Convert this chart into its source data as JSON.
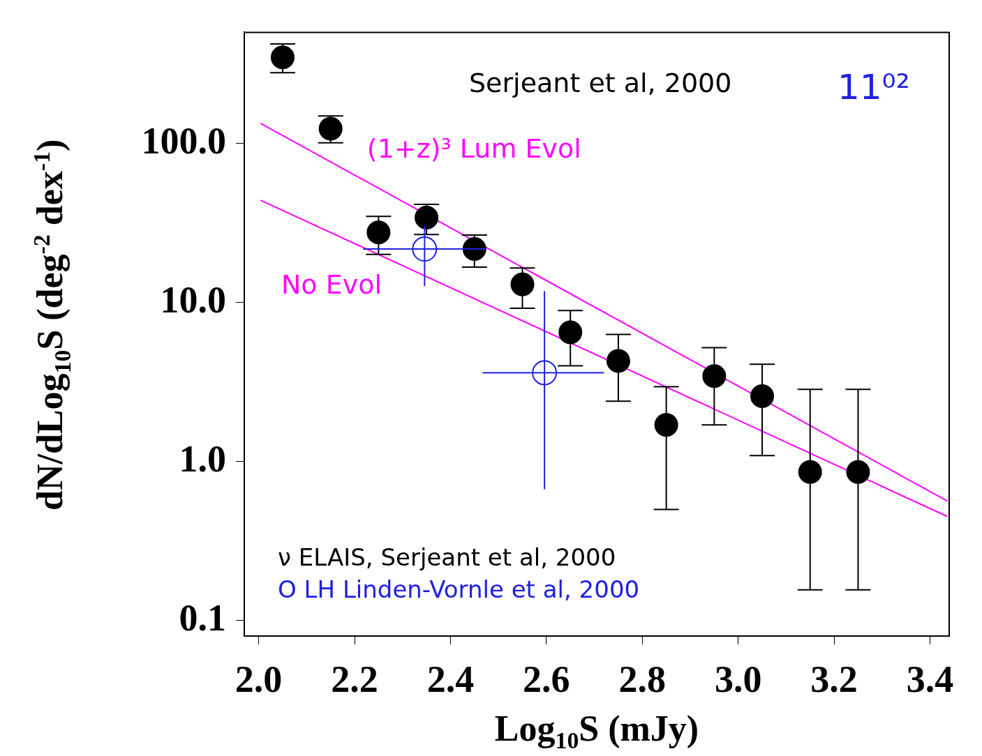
{
  "chart_data": {
    "type": "scatter",
    "xlabel": "Log$_{10}$S (mJy)",
    "ylabel": "dN/dLog$_{10}$S (deg$^{-2}$ dex$^{-1}$)",
    "annotations": [
      "Serjeant et al, 2000",
      "11⁰²"
    ],
    "xlim": [
      1.97,
      3.44
    ],
    "xticks": [
      {
        "value": 2,
        "label": "2.0"
      },
      {
        "value": 2.2,
        "label": "2.2"
      },
      {
        "value": 2.4,
        "label": "2.4"
      },
      {
        "value": 2.6,
        "label": "2.6"
      },
      {
        "value": 2.8,
        "label": "2.8"
      },
      {
        "value": 3,
        "label": "3.0"
      },
      {
        "value": 3.2,
        "label": "3.2"
      },
      {
        "value": 3.4,
        "label": "3.4"
      }
    ],
    "ylim": [
      0.08,
      500
    ],
    "yticks": [
      {
        "value": 0.1,
        "label": "0.1"
      },
      {
        "value": 1,
        "label": "1.0"
      },
      {
        "value": 10,
        "label": "10.0"
      },
      {
        "value": 100,
        "label": "100.0"
      }
    ],
    "log": "y",
    "grid": false,
    "legend": "bottom left",
    "series": [
      {
        "marker": "circle",
        "name": "ν ELAIS, Serjeant et al, 2000",
        "color": "#000000",
        "x": [
          2.05,
          2.15,
          2.25,
          2.35,
          2.45,
          2.55,
          2.65,
          2.75,
          2.85,
          2.95,
          3.05,
          3.15,
          3.25
        ],
        "values": [
          348,
          124,
          27.6,
          34.2,
          21.7,
          13.0,
          6.5,
          4.3,
          1.7,
          3.45,
          2.58,
          0.86,
          0.86
        ],
        "errors": [
          [
            279,
            423
          ],
          [
            101,
            149
          ],
          [
            20.1,
            34.8
          ],
          [
            26.8,
            41.5
          ],
          [
            16.7,
            26.6
          ],
          [
            9.2,
            16.5
          ],
          [
            4.0,
            8.9
          ],
          [
            2.4,
            6.3
          ],
          [
            0.5,
            2.96
          ],
          [
            1.7,
            5.2
          ],
          [
            1.09,
            4.1
          ],
          [
            0.156,
            2.85
          ],
          [
            0.156,
            2.85
          ]
        ]
      },
      {
        "marker": "circle",
        "name": "O LH Linden-Vornle et al, 2000",
        "color": "#2020e0",
        "x": [
          2.346,
          2.596
        ],
        "values": [
          21.7,
          3.62
        ],
        "errors": [
          [
            12.7,
            30.4
          ],
          [
            0.67,
            11.8
          ]
        ],
        "xerrors": [
          [
            2.218,
            2.474
          ],
          [
            2.467,
            2.72
          ]
        ]
      },
      {
        "type": "line",
        "marker": "none",
        "name": "(1+z)³ Lum Evol",
        "color": "#ff00ff",
        "x": [
          2.004,
          3.436
        ],
        "values": [
          134,
          0.565
        ]
      },
      {
        "type": "line",
        "marker": "none",
        "name": "No Evol",
        "color": "#ff00ff",
        "x": [
          2.004,
          3.436
        ],
        "values": [
          44,
          0.452
        ]
      }
    ]
  }
}
